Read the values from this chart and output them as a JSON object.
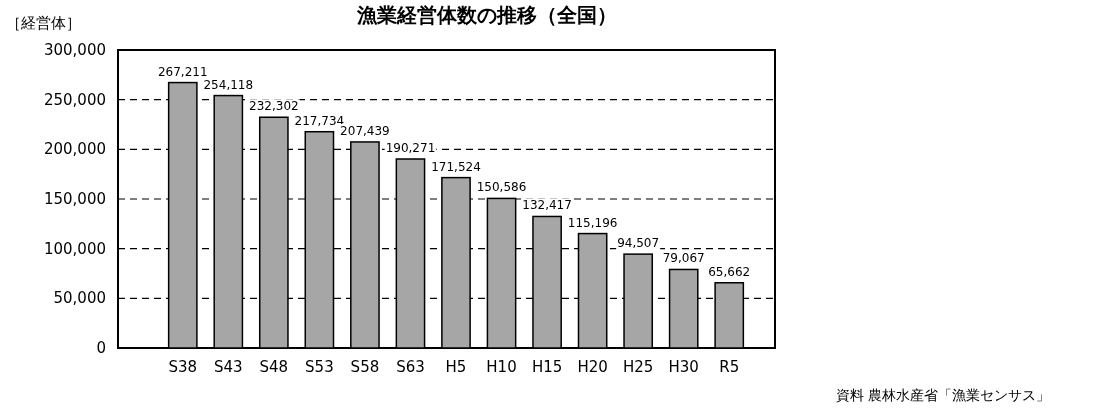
{
  "chart_data": {
    "type": "bar",
    "title": "漁業経営体数の推移（全国）",
    "ylabel": "［経営体］",
    "categories": [
      "S38",
      "S43",
      "S48",
      "S53",
      "S58",
      "S63",
      "H5",
      "H10",
      "H15",
      "H20",
      "H25",
      "H30",
      "R5"
    ],
    "values": [
      267211,
      254118,
      232302,
      217734,
      207439,
      190271,
      171524,
      150586,
      132417,
      115196,
      94507,
      79067,
      65662
    ],
    "value_labels": [
      "267,211",
      "254,118",
      "232,302",
      "217,734",
      "207,439",
      "190,271",
      "171,524",
      "150,586",
      "132,417",
      "115,196",
      "94,507",
      "79,067",
      "65,662"
    ],
    "color": "#a6a6a6",
    "grid": "y",
    "ylim": [
      0,
      300000
    ],
    "yticks": [
      {
        "value": 0,
        "label": "0"
      },
      {
        "value": 50000,
        "label": "50,000"
      },
      {
        "value": 100000,
        "label": "100,000"
      },
      {
        "value": 150000,
        "label": "150,000"
      },
      {
        "value": 200000,
        "label": "200,000"
      },
      {
        "value": 250000,
        "label": "250,000"
      },
      {
        "value": 300000,
        "label": "300,000"
      }
    ],
    "annotations": [
      "資料  農林水産省「漁業センサス」"
    ]
  }
}
